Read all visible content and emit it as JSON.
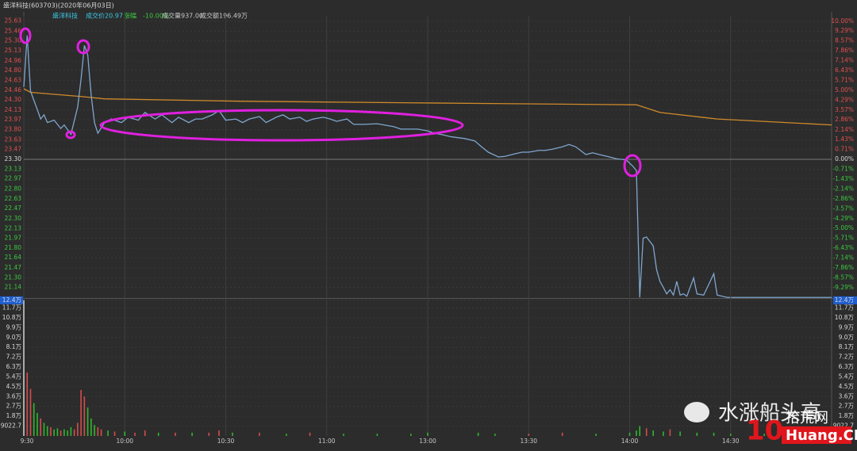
{
  "header": {
    "title": "盛洋科技(603703)(2020年06月03日)",
    "stock": "盛洋科技",
    "stats": [
      {
        "label": "成交价",
        "value": "20.97"
      },
      {
        "label": "涨幅",
        "value": "-10.00%"
      },
      {
        "label": "成交量",
        "value": "937.00"
      },
      {
        "label": "成交额",
        "value": "196.49万"
      }
    ]
  },
  "watermark": {
    "text": "水涨船头高",
    "logo": "10",
    "site": "Huang.CN",
    "site_name": "拾荒网"
  },
  "chart_data": [
    {
      "type": "line",
      "xlim": [
        0,
        240
      ],
      "xticks": [
        {
          "value": 0,
          "label": "9:30"
        },
        {
          "value": 30,
          "label": "10:00"
        },
        {
          "value": 60,
          "label": "10:30"
        },
        {
          "value": 90,
          "label": "11:00"
        },
        {
          "value": 120,
          "label": "13:00"
        },
        {
          "value": 150,
          "label": "13:30"
        },
        {
          "value": 180,
          "label": "14:00"
        },
        {
          "value": 210,
          "label": "14:30"
        }
      ],
      "ylim": [
        20.96,
        25.72
      ],
      "yticks": [
        {
          "value": 25.63,
          "label": "25.63"
        },
        {
          "value": 25.46,
          "label": "25.46"
        },
        {
          "value": 25.3,
          "label": "25.30"
        },
        {
          "value": 25.13,
          "label": "25.13"
        },
        {
          "value": 24.96,
          "label": "24.96"
        },
        {
          "value": 24.8,
          "label": "24.80"
        },
        {
          "value": 24.63,
          "label": "24.63"
        },
        {
          "value": 24.46,
          "label": "24.46"
        },
        {
          "value": 24.3,
          "label": "24.30"
        },
        {
          "value": 24.13,
          "label": "24.13"
        },
        {
          "value": 23.97,
          "label": "23.97"
        },
        {
          "value": 23.8,
          "label": "23.80"
        },
        {
          "value": 23.63,
          "label": "23.63"
        },
        {
          "value": 23.47,
          "label": "23.47"
        },
        {
          "value": 23.3,
          "label": "23.30"
        },
        {
          "value": 23.13,
          "label": "23.13"
        },
        {
          "value": 22.97,
          "label": "22.97"
        },
        {
          "value": 22.8,
          "label": "22.80"
        },
        {
          "value": 22.63,
          "label": "22.63"
        },
        {
          "value": 22.47,
          "label": "22.47"
        },
        {
          "value": 22.3,
          "label": "22.30"
        },
        {
          "value": 22.13,
          "label": "22.13"
        },
        {
          "value": 21.97,
          "label": "21.97"
        },
        {
          "value": 21.8,
          "label": "21.80"
        },
        {
          "value": 21.64,
          "label": "21.64"
        },
        {
          "value": 21.47,
          "label": "21.47"
        },
        {
          "value": 21.3,
          "label": "21.30"
        },
        {
          "value": 21.14,
          "label": "21.14"
        }
      ],
      "y2lim": [
        -10.04,
        10.39
      ],
      "y2ticks": [
        {
          "value": 10,
          "label": "10.00%"
        },
        {
          "value": 9.29,
          "label": "9.29%"
        },
        {
          "value": 8.57,
          "label": "8.57%"
        },
        {
          "value": 7.86,
          "label": "7.86%"
        },
        {
          "value": 7.14,
          "label": "7.14%"
        },
        {
          "value": 6.43,
          "label": "6.43%"
        },
        {
          "value": 5.71,
          "label": "5.71%"
        },
        {
          "value": 5,
          "label": "5.00%"
        },
        {
          "value": 4.29,
          "label": "4.29%"
        },
        {
          "value": 3.57,
          "label": "3.57%"
        },
        {
          "value": 2.86,
          "label": "2.86%"
        },
        {
          "value": 2.14,
          "label": "2.14%"
        },
        {
          "value": 1.43,
          "label": "1.43%"
        },
        {
          "value": 0.71,
          "label": "0.71%"
        },
        {
          "value": 0,
          "label": "0.00%"
        },
        {
          "value": -0.71,
          "label": "-0.71%"
        },
        {
          "value": -1.43,
          "label": "-1.43%"
        },
        {
          "value": -2.14,
          "label": "-2.14%"
        },
        {
          "value": -2.86,
          "label": "-2.86%"
        },
        {
          "value": -3.57,
          "label": "-3.57%"
        },
        {
          "value": -4.29,
          "label": "-4.29%"
        },
        {
          "value": -5,
          "label": "-5.00%"
        },
        {
          "value": -5.71,
          "label": "-5.71%"
        },
        {
          "value": -6.43,
          "label": "-6.43%"
        },
        {
          "value": -7.14,
          "label": "-7.14%"
        },
        {
          "value": -7.86,
          "label": "-7.86%"
        },
        {
          "value": -8.57,
          "label": "-8.57%"
        },
        {
          "value": -9.29,
          "label": "-9.29%"
        }
      ],
      "series": [
        {
          "color": "#d08a2a",
          "x": [
            0,
            2,
            17,
            24,
            64,
            121,
            182,
            189,
            206,
            240
          ],
          "values": [
            24.49,
            24.43,
            24.36,
            24.32,
            24.28,
            24.25,
            24.22,
            24.09,
            23.98,
            23.88
          ]
        },
        {
          "color": "#7fa6cf",
          "x": [
            0,
            1,
            2,
            4,
            5,
            6,
            7,
            9,
            11,
            12,
            14,
            16,
            17,
            18,
            19,
            20,
            21,
            22,
            24,
            26,
            29,
            31,
            34,
            36,
            39,
            41,
            44,
            46,
            49,
            51,
            53,
            56,
            58,
            60,
            63,
            65,
            67,
            70,
            72,
            75,
            77,
            79,
            82,
            84,
            86,
            89,
            91,
            93,
            96,
            98,
            101,
            105,
            107,
            110,
            112,
            117,
            120,
            122,
            124,
            127,
            131,
            134,
            136,
            138,
            141,
            143,
            145,
            148,
            150,
            153,
            155,
            157,
            160,
            162,
            164,
            167,
            169,
            171,
            174,
            176,
            179,
            181,
            182,
            183,
            184,
            185,
            187,
            188,
            189,
            190,
            191,
            192,
            193,
            194,
            195,
            196,
            197,
            199,
            200,
            202,
            205,
            206,
            209,
            240
          ],
          "values": [
            24.52,
            25.39,
            24.45,
            24.14,
            23.98,
            24.05,
            23.92,
            23.96,
            23.82,
            23.88,
            23.72,
            24.18,
            24.65,
            25.22,
            25.06,
            24.39,
            23.92,
            23.74,
            23.92,
            23.98,
            23.92,
            24.01,
            23.96,
            24.09,
            23.98,
            24.05,
            23.92,
            24.01,
            23.92,
            23.98,
            23.98,
            24.05,
            24.12,
            23.96,
            23.98,
            23.92,
            23.98,
            24.02,
            23.92,
            24.01,
            24.05,
            23.98,
            24.01,
            23.94,
            23.98,
            24.01,
            23.98,
            23.94,
            23.98,
            23.89,
            23.89,
            23.9,
            23.88,
            23.85,
            23.81,
            23.81,
            23.78,
            23.74,
            23.72,
            23.68,
            23.65,
            23.61,
            23.51,
            23.42,
            23.34,
            23.35,
            23.38,
            23.42,
            23.42,
            23.45,
            23.45,
            23.47,
            23.51,
            23.55,
            23.51,
            23.38,
            23.41,
            23.38,
            23.34,
            23.31,
            23.29,
            23.18,
            23.11,
            20.97,
            21.97,
            21.99,
            21.84,
            21.44,
            21.24,
            21.14,
            21.03,
            21.1,
            21.01,
            21.24,
            21.01,
            21.03,
            20.99,
            21.3,
            21.03,
            21.01,
            21.37,
            21.01,
            20.97,
            20.97
          ]
        }
      ]
    },
    {
      "type": "bar",
      "xlim": [
        0,
        240
      ],
      "xticks": [
        {
          "value": 0,
          "label": "9:30"
        },
        {
          "value": 30,
          "label": "10:00"
        },
        {
          "value": 60,
          "label": "10:30"
        },
        {
          "value": 90,
          "label": "11:00"
        },
        {
          "value": 120,
          "label": "13:00"
        },
        {
          "value": 150,
          "label": "13:30"
        },
        {
          "value": 180,
          "label": "14:00"
        },
        {
          "value": 210,
          "label": "14:30"
        }
      ],
      "ylim": [
        0,
        12.75
      ],
      "yticks": [
        {
          "value": 12.4,
          "label": "12.4万"
        },
        {
          "value": 11.7,
          "label": "11.7万"
        },
        {
          "value": 10.8,
          "label": "10.8万"
        },
        {
          "value": 9.9,
          "label": "9.9万"
        },
        {
          "value": 9,
          "label": "9.0万"
        },
        {
          "value": 8.1,
          "label": "8.1万"
        },
        {
          "value": 7.2,
          "label": "7.2万"
        },
        {
          "value": 6.3,
          "label": "6.3万"
        },
        {
          "value": 5.4,
          "label": "5.4万"
        },
        {
          "value": 4.5,
          "label": "4.5万"
        },
        {
          "value": 3.6,
          "label": "3.6万"
        },
        {
          "value": 2.7,
          "label": "2.7万"
        },
        {
          "value": 1.8,
          "label": "1.8万"
        },
        {
          "value": 0.90227,
          "label": "9022.7"
        }
      ],
      "x": [
        0,
        1,
        2,
        3,
        4,
        5,
        6,
        7,
        8,
        9,
        10,
        11,
        12,
        13,
        14,
        15,
        16,
        17,
        18,
        19,
        20,
        21,
        22,
        23,
        25,
        27,
        30,
        33,
        36,
        40,
        45,
        50,
        55,
        58,
        62,
        70,
        78,
        85,
        95,
        105,
        115,
        120,
        135,
        140,
        150,
        160,
        170,
        180,
        182,
        183,
        185,
        187,
        190,
        192,
        195,
        200,
        205,
        210,
        220,
        230
      ],
      "values": [
        12.4,
        5.8,
        4.3,
        3.0,
        2.1,
        1.6,
        1.2,
        0.9,
        0.8,
        0.6,
        0.7,
        0.5,
        0.6,
        0.5,
        0.8,
        0.6,
        1.2,
        4.2,
        3.6,
        2.6,
        1.6,
        1.0,
        0.8,
        0.6,
        0.5,
        0.4,
        0.4,
        0.3,
        0.5,
        0.3,
        0.3,
        0.3,
        0.3,
        0.5,
        0.3,
        0.3,
        0.2,
        0.3,
        0.2,
        0.2,
        0.2,
        0.3,
        0.3,
        0.2,
        0.2,
        0.3,
        0.2,
        0.3,
        0.5,
        0.9,
        0.7,
        0.5,
        0.4,
        0.6,
        0.4,
        0.3,
        0.3,
        0.2,
        0.2,
        0.1
      ],
      "bar_colors": [
        "#c8c8c8",
        "#d44c4c",
        "#d44c4c",
        "#2eb82e",
        "#2eb82e",
        "#d44c4c",
        "#2eb82e",
        "#2eb82e",
        "#d44c4c",
        "#2eb82e",
        "#2eb82e",
        "#d44c4c",
        "#2eb82e",
        "#2eb82e",
        "#2eb82e",
        "#d44c4c",
        "#d44c4c",
        "#d44c4c",
        "#d44c4c",
        "#2eb82e",
        "#2eb82e",
        "#2eb82e",
        "#d44c4c",
        "#d44c4c",
        "#2eb82e",
        "#d44c4c",
        "#2eb82e",
        "#d44c4c",
        "#d44c4c",
        "#2eb82e",
        "#d44c4c",
        "#2eb82e",
        "#d44c4c",
        "#d44c4c",
        "#2eb82e",
        "#d44c4c",
        "#2eb82e",
        "#d44c4c",
        "#2eb82e",
        "#2eb82e",
        "#2eb82e",
        "#2eb82e",
        "#2eb82e",
        "#2eb82e",
        "#d44c4c",
        "#d44c4c",
        "#2eb82e",
        "#2eb82e",
        "#2eb82e",
        "#2eb82e",
        "#d44c4c",
        "#2eb82e",
        "#2eb82e",
        "#d44c4c",
        "#2eb82e",
        "#2eb82e",
        "#2eb82e",
        "#2eb82e",
        "#2eb82e",
        "#2eb82e"
      ]
    }
  ]
}
